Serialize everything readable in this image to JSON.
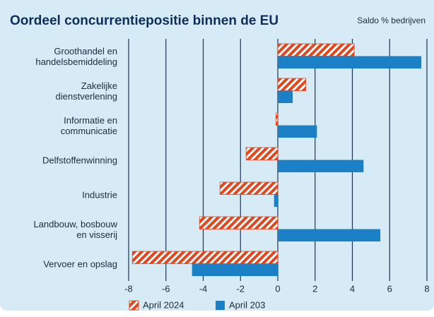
{
  "chart_data": {
    "type": "hbar",
    "title": "Oordeel concurrentiepositie binnen de EU",
    "subtitle": "Saldo % bedrijven",
    "categories": [
      "Groothandel en\nhandelsbemiddeling",
      "Zakelijke\ndienstverlening",
      "Informatie en\ncommunicatie",
      "Delfstoffenwinning",
      "Industrie",
      "Landbouw, bosbouw\nen visserij",
      "Vervoer en opslag"
    ],
    "series": [
      {
        "name": "April 2024",
        "color": "#e2461e",
        "pattern": "hatch",
        "values": [
          4.1,
          1.5,
          -0.1,
          -1.7,
          -3.1,
          -4.2,
          -7.8
        ]
      },
      {
        "name": "April 203",
        "color": "#1b80c5",
        "values": [
          7.7,
          0.8,
          2.1,
          4.6,
          -0.2,
          5.5,
          -4.6
        ]
      }
    ],
    "xlim": [
      -8,
      8
    ],
    "xticks": [
      -8,
      -6,
      -4,
      -2,
      0,
      2,
      4,
      6,
      8
    ],
    "grid": true
  }
}
